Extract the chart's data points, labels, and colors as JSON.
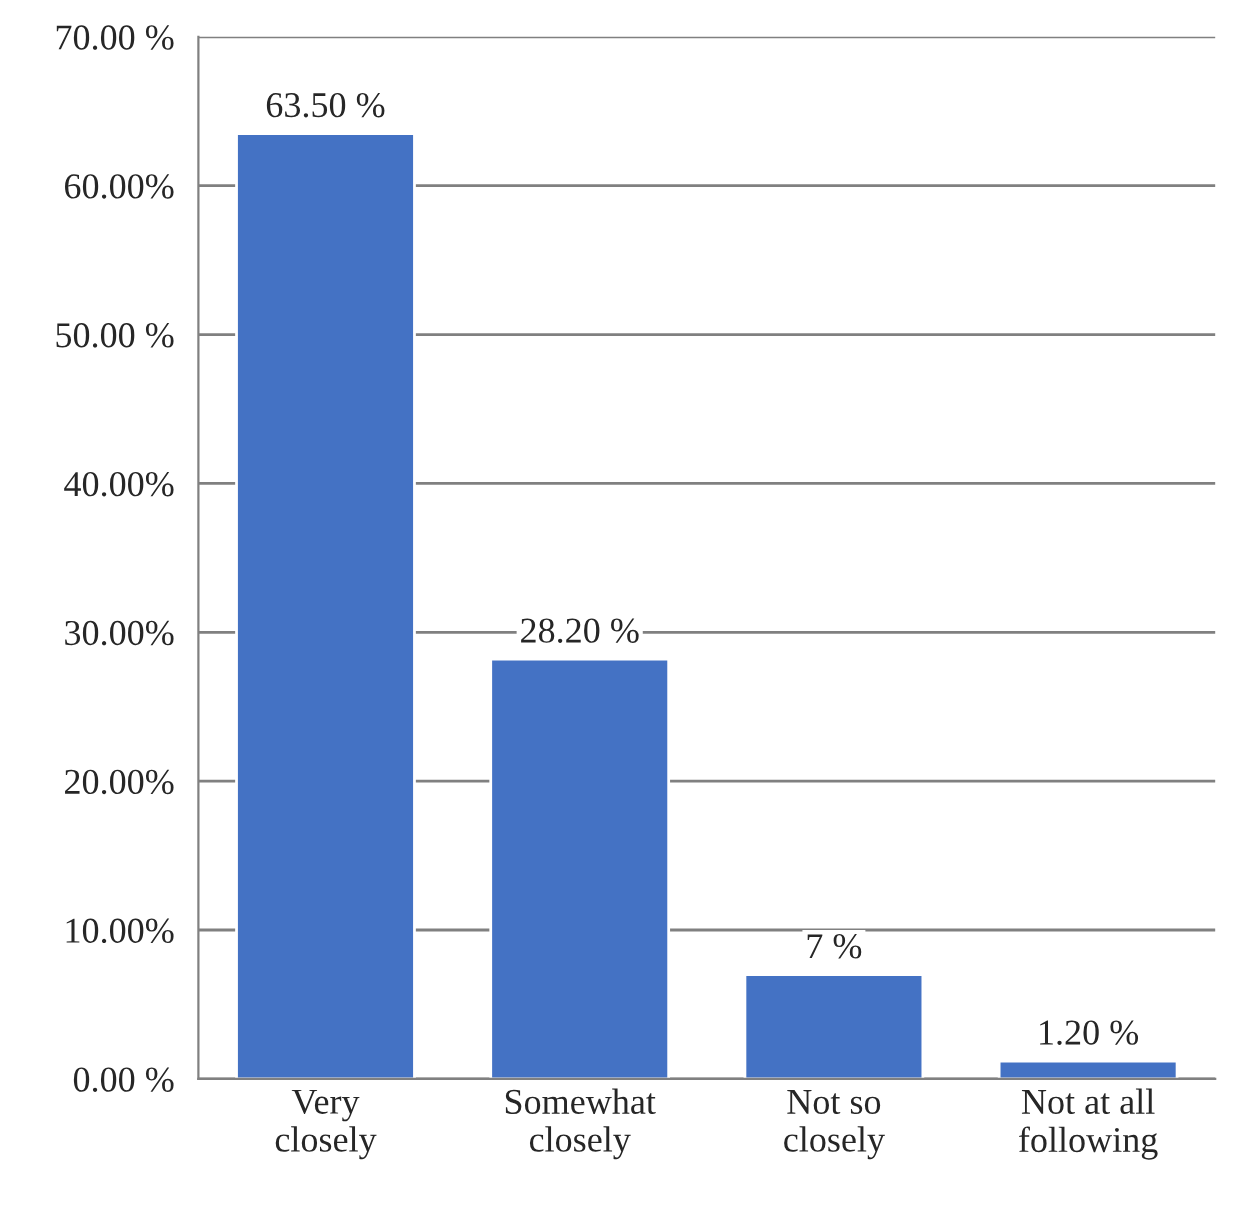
{
  "chart_data": {
    "type": "bar",
    "categories": [
      "Very\nclosely",
      "Somewhat\nclosely",
      "Not so\nclosely",
      "Not at all\nfollowing"
    ],
    "values": [
      63.5,
      28.2,
      7,
      1.2
    ],
    "value_labels": [
      "63.50 %",
      "28.20 %",
      "7 %",
      "1.20 %"
    ],
    "color": "#4472c4",
    "ylim": [
      0,
      70
    ],
    "yticks": [
      {
        "value": 0,
        "label": "0.00 %"
      },
      {
        "value": 10,
        "label": "10.00%"
      },
      {
        "value": 20,
        "label": "20.00%"
      },
      {
        "value": 30,
        "label": "30.00%"
      },
      {
        "value": 40,
        "label": "40.00%"
      },
      {
        "value": 50,
        "label": "50.00 %"
      },
      {
        "value": 60,
        "label": "60.00%"
      },
      {
        "value": 70,
        "label": "70.00 %"
      }
    ],
    "grid": "y",
    "legend": false
  }
}
